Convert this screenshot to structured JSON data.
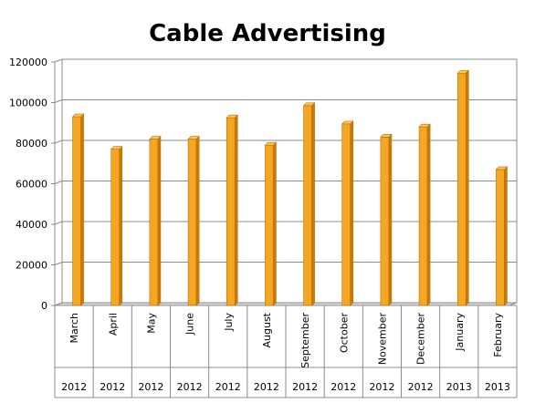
{
  "chart_data": {
    "type": "bar",
    "title": "Cable Advertising",
    "categories": [
      "March",
      "April",
      "May",
      "June",
      "July",
      "August",
      "September",
      "October",
      "November",
      "December",
      "January",
      "February"
    ],
    "years": [
      "2012",
      "2012",
      "2012",
      "2012",
      "2012",
      "2012",
      "2012",
      "2012",
      "2012",
      "2012",
      "2013",
      "2013"
    ],
    "values": [
      93000,
      77000,
      82000,
      82000,
      92500,
      79000,
      98500,
      89500,
      83000,
      88000,
      114500,
      67000
    ],
    "ylim": [
      0,
      120000
    ],
    "yticks": [
      "0",
      "20000",
      "40000",
      "60000",
      "80000",
      "100000",
      "120000"
    ],
    "grid": true,
    "colors": {
      "bar": "#F5A623",
      "bar_dark": "#C97A08",
      "bar_light": "#FFC655",
      "grid": "#8c8c8c",
      "wall": "#ffffff"
    }
  }
}
